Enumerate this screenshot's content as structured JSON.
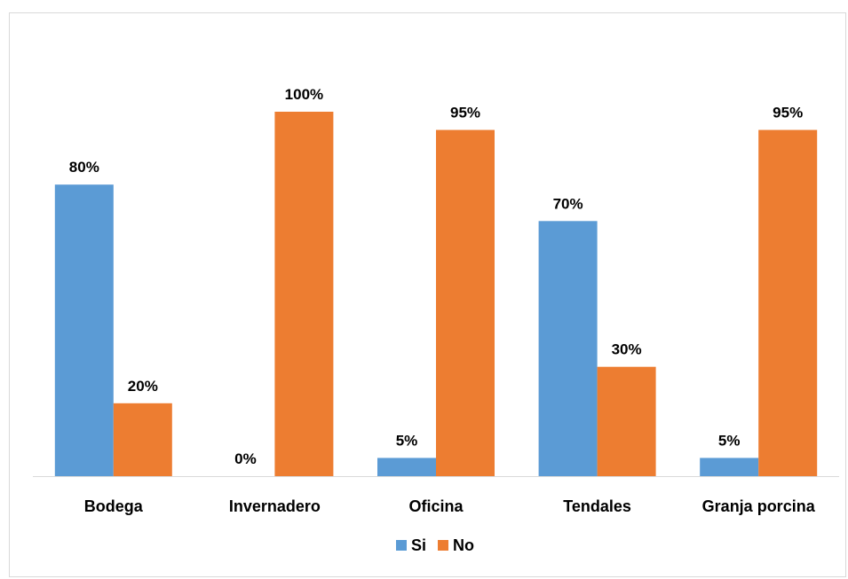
{
  "chart_data": {
    "type": "bar",
    "categories": [
      "Bodega",
      "Invernadero",
      "Oficina",
      "Tendales",
      "Granja porcina"
    ],
    "series": [
      {
        "name": "Si",
        "values": [
          80,
          0,
          5,
          70,
          5
        ],
        "labels": [
          "80%",
          "0%",
          "5%",
          "70%",
          "5%"
        ],
        "color": "#5B9BD5"
      },
      {
        "name": "No",
        "values": [
          20,
          100,
          95,
          30,
          95
        ],
        "labels": [
          "20%",
          "100%",
          "95%",
          "30%",
          "95%"
        ],
        "color": "#ED7D31"
      }
    ],
    "ylim": [
      0,
      100
    ],
    "grid": false,
    "legend_position": "bottom",
    "title": "",
    "xlabel": "",
    "ylabel": ""
  }
}
